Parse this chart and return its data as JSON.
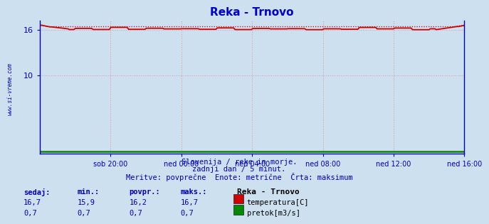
{
  "title": "Reka - Trnovo",
  "title_color": "#0000cc",
  "bg_color": "#cce0f0",
  "plot_bg_color": "#cce0f0",
  "watermark": "www.si-vreme.com",
  "xlabel_ticks": [
    "sob 20:00",
    "ned 00:00",
    "ned 04:00",
    "ned 08:00",
    "ned 12:00",
    "ned 16:00"
  ],
  "yticks": [
    10,
    16
  ],
  "ylim": [
    -0.3,
    17.2
  ],
  "xlim": [
    0,
    288
  ],
  "temp_color": "#cc0000",
  "flow_color": "#008800",
  "grid_color": "#dd9999",
  "axis_color": "#0000bb",
  "text_color": "#0000bb",
  "footer_line1": "Slovenija / reke in morje.",
  "footer_line2": "zadnji dan / 5 minut.",
  "footer_line3": "Meritve: povprečne  Enote: metrične  Črta: maksimum",
  "table_headers": [
    "sedaj:",
    "min.:",
    "povpr.:",
    "maks.:"
  ],
  "station_name": "Reka - Trnovo",
  "row1_label": "temperatura[C]",
  "row2_label": "pretok[m3/s]",
  "row1_values": [
    "16,7",
    "15,9",
    "16,2",
    "16,7"
  ],
  "row2_values": [
    "0,7",
    "0,7",
    "0,7",
    "0,7"
  ]
}
